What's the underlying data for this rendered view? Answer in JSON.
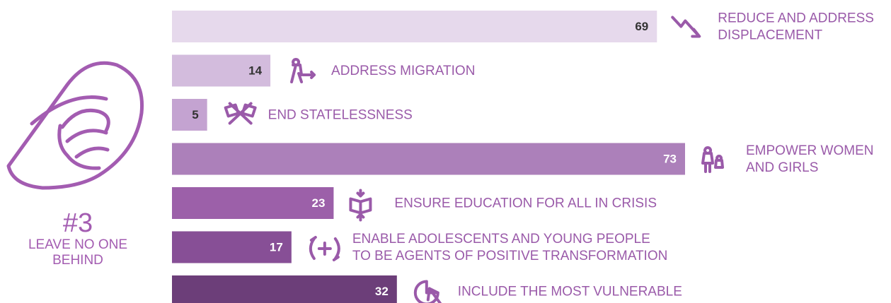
{
  "chart_data": {
    "type": "bar",
    "orientation": "horizontal",
    "side_label": {
      "number": "#3",
      "lines": [
        "LEAVE NO ONE",
        "BEHIND"
      ]
    },
    "categories": [
      [
        "REDUCE AND ADDRESS",
        "DISPLACEMENT"
      ],
      [
        "ADDRESS MIGRATION"
      ],
      [
        "END STATELESSNESS"
      ],
      [
        "EMPOWER WOMEN",
        "AND GIRLS"
      ],
      [
        "ENSURE EDUCATION FOR ALL IN CRISIS"
      ],
      [
        "ENABLE ADOLESCENTS AND YOUNG PEOPLE",
        "TO BE AGENTS OF POSITIVE TRANSFORMATION"
      ],
      [
        "INCLUDE THE MOST VULNERABLE"
      ]
    ],
    "values": [
      69,
      14,
      5,
      73,
      23,
      17,
      32
    ],
    "colors": [
      "#e6d9ec",
      "#d3bcdd",
      "#c4a3d1",
      "#ac80ba",
      "#9c60a9",
      "#874f96",
      "#6c3e79"
    ],
    "value_label_colors": [
      "#333333",
      "#333333",
      "#333333",
      "#ffffff",
      "#ffffff",
      "#ffffff",
      "#ffffff"
    ]
  }
}
